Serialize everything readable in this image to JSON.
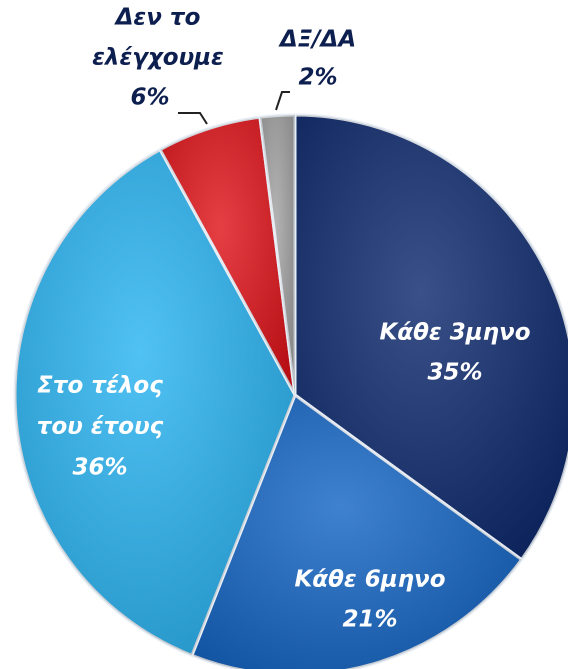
{
  "chart_data": {
    "type": "pie",
    "categories": [
      [
        "Κάθε 3μηνο"
      ],
      [
        "Κάθε 6μηνο"
      ],
      [
        "Στο τέλος",
        "του έτους"
      ],
      [
        "Δεν το",
        "ελέγχουμε"
      ],
      [
        "ΔΞ/ΔΑ"
      ]
    ],
    "values": [
      35,
      21,
      36,
      6,
      2
    ],
    "value_labels": [
      "35%",
      "21%",
      "36%",
      "6%",
      "2%"
    ],
    "colors": [
      "#0e2a6e",
      "#1566c4",
      "#2bb4f2",
      "#e0141a",
      "#a3a3a3"
    ]
  }
}
